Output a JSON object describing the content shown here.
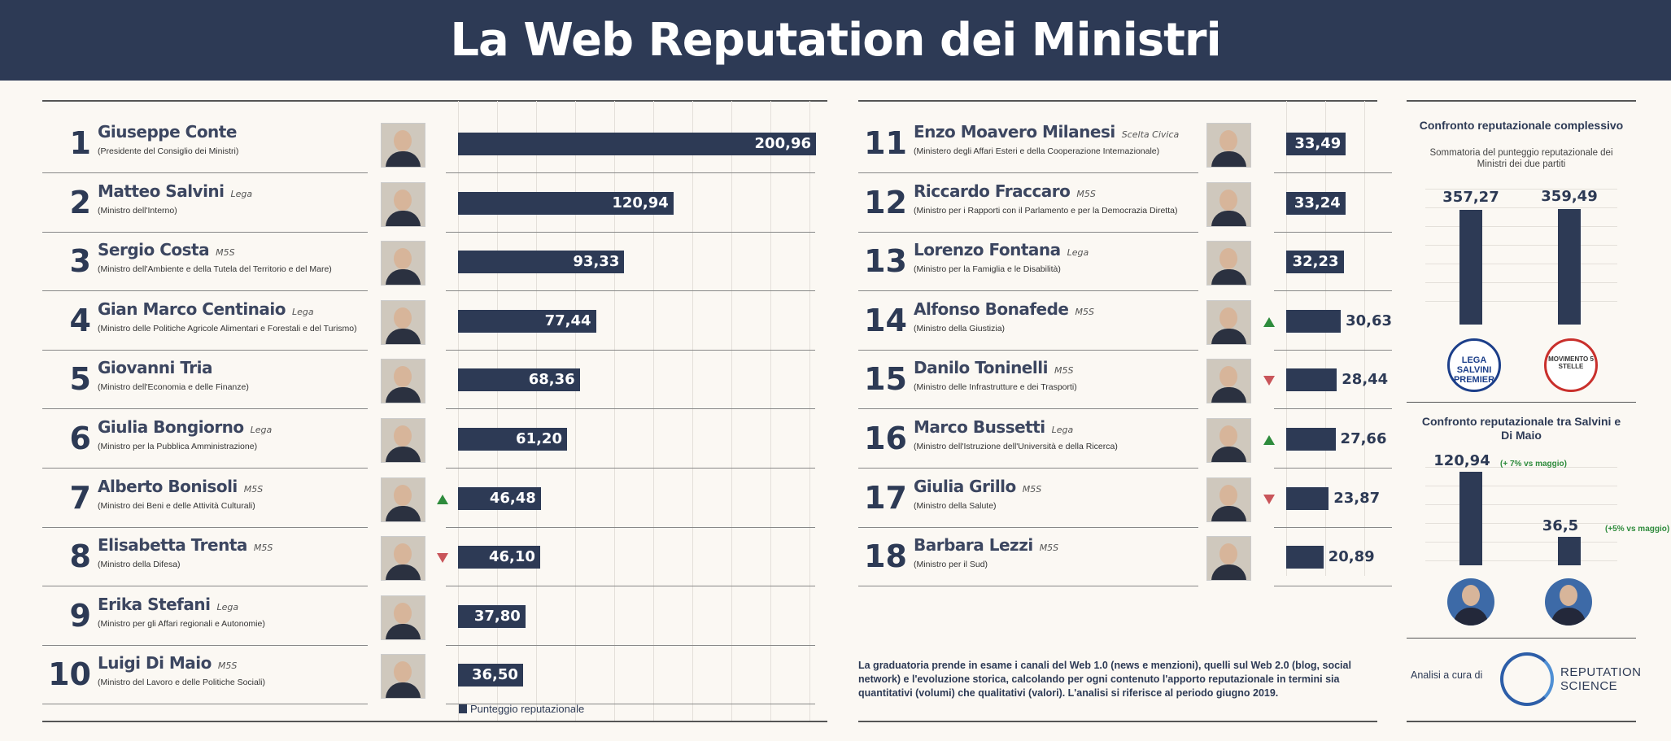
{
  "title": "La Web Reputation dei Ministri",
  "chart_data": [
    {
      "type": "bar",
      "legend": "Punteggio reputazionale",
      "series_name": "Punteggio reputazionale",
      "ranking": [
        {
          "rank": "1",
          "name": "Giuseppe Conte",
          "party": "",
          "role": "(Presidente del Consiglio dei Ministri)",
          "value": 200.96,
          "label": "200,96",
          "trend": ""
        },
        {
          "rank": "2",
          "name": "Matteo Salvini",
          "party": "Lega",
          "role": "(Ministro dell'Interno)",
          "value": 120.94,
          "label": "120,94",
          "trend": ""
        },
        {
          "rank": "3",
          "name": "Sergio Costa",
          "party": "M5S",
          "role": "(Ministro dell'Ambiente e della Tutela del Territorio e del Mare)",
          "value": 93.33,
          "label": "93,33",
          "trend": ""
        },
        {
          "rank": "4",
          "name": "Gian Marco Centinaio",
          "party": "Lega",
          "role": "(Ministro delle Politiche Agricole Alimentari e Forestali e del Turismo)",
          "value": 77.44,
          "label": "77,44",
          "trend": ""
        },
        {
          "rank": "5",
          "name": "Giovanni Tria",
          "party": "",
          "role": "(Ministro dell'Economia e delle Finanze)",
          "value": 68.36,
          "label": "68,36",
          "trend": ""
        },
        {
          "rank": "6",
          "name": "Giulia Bongiorno",
          "party": "Lega",
          "role": "(Ministro per la Pubblica Amministrazione)",
          "value": 61.2,
          "label": "61,20",
          "trend": ""
        },
        {
          "rank": "7",
          "name": "Alberto Bonisoli",
          "party": "M5S",
          "role": "(Ministro dei Beni e delle Attività Culturali)",
          "value": 46.48,
          "label": "46,48",
          "trend": "up"
        },
        {
          "rank": "8",
          "name": "Elisabetta Trenta",
          "party": "M5S",
          "role": "(Ministro della Difesa)",
          "value": 46.1,
          "label": "46,10",
          "trend": "down"
        },
        {
          "rank": "9",
          "name": "Erika Stefani",
          "party": "Lega",
          "role": "(Ministro per gli Affari regionali e Autonomie)",
          "value": 37.8,
          "label": "37,80",
          "trend": ""
        },
        {
          "rank": "10",
          "name": "Luigi Di Maio",
          "party": "M5S",
          "role": "(Ministro del Lavoro e delle Politiche Sociali)",
          "value": 36.5,
          "label": "36,50",
          "trend": ""
        },
        {
          "rank": "11",
          "name": "Enzo Moavero Milanesi",
          "party": "Scelta Civica",
          "role": "(Ministero degli Affari Esteri e della Cooperazione Internazionale)",
          "value": 33.49,
          "label": "33,49",
          "trend": ""
        },
        {
          "rank": "12",
          "name": "Riccardo Fraccaro",
          "party": "M5S",
          "role": "(Ministro per i Rapporti con il Parlamento e per la Democrazia Diretta)",
          "value": 33.24,
          "label": "33,24",
          "trend": ""
        },
        {
          "rank": "13",
          "name": "Lorenzo Fontana",
          "party": "Lega",
          "role": "(Ministro per la Famiglia e le Disabilità)",
          "value": 32.23,
          "label": "32,23",
          "trend": ""
        },
        {
          "rank": "14",
          "name": "Alfonso Bonafede",
          "party": "M5S",
          "role": "(Ministro della Giustizia)",
          "value": 30.63,
          "label": "30,63",
          "trend": "up"
        },
        {
          "rank": "15",
          "name": "Danilo Toninelli",
          "party": "M5S",
          "role": "(Ministro delle Infrastrutture e dei Trasporti)",
          "value": 28.44,
          "label": "28,44",
          "trend": "down"
        },
        {
          "rank": "16",
          "name": "Marco Bussetti",
          "party": "Lega",
          "role": "(Ministro dell'Istruzione dell'Università e della Ricerca)",
          "value": 27.66,
          "label": "27,66",
          "trend": "up"
        },
        {
          "rank": "17",
          "name": "Giulia Grillo",
          "party": "M5S",
          "role": "(Ministro della Salute)",
          "value": 23.87,
          "label": "23,87",
          "trend": "down"
        },
        {
          "rank": "18",
          "name": "Barbara Lezzi",
          "party": "M5S",
          "role": "(Ministro per il Sud)",
          "value": 20.89,
          "label": "20,89",
          "trend": ""
        }
      ]
    },
    {
      "type": "bar",
      "title": "Confronto reputazionale complessivo",
      "subtitle": "Sommatoria del punteggio reputazionale dei Ministri dei due partiti",
      "categories": [
        "Lega",
        "M5S"
      ],
      "values": [
        357.27,
        359.49
      ],
      "labels": [
        "357,27",
        "359,49"
      ],
      "logos": [
        "LEGA SALVINI PREMIER",
        "MOVIMENTO 5 STELLE"
      ]
    },
    {
      "type": "bar",
      "title": "Confronto reputazionale tra Salvini e Di Maio",
      "categories": [
        "Salvini",
        "Di Maio"
      ],
      "values": [
        120.94,
        36.5
      ],
      "labels": [
        "120,94",
        "36,5"
      ],
      "changes": [
        "(+ 7% vs maggio)",
        "(+5% vs maggio)"
      ]
    }
  ],
  "note": "La graduatoria prende in esame i canali del Web 1.0 (news e menzioni), quelli sul Web 2.0 (blog, social network) e l'evoluzione storica, calcolando per ogni contenuto l'apporto reputazionale in termini sia quantitativi (volumi) che qualitativi (valori). L'analisi si riferisce al periodo giugno 2019.",
  "credit": {
    "label": "Analisi a cura di",
    "brand_line1": "REPUTATION",
    "brand_line2": "SCIENCE"
  },
  "colors": {
    "navy": "#2d3a55",
    "up": "#2e8b3c",
    "down": "#c9555a",
    "background": "#fbf8f3"
  }
}
